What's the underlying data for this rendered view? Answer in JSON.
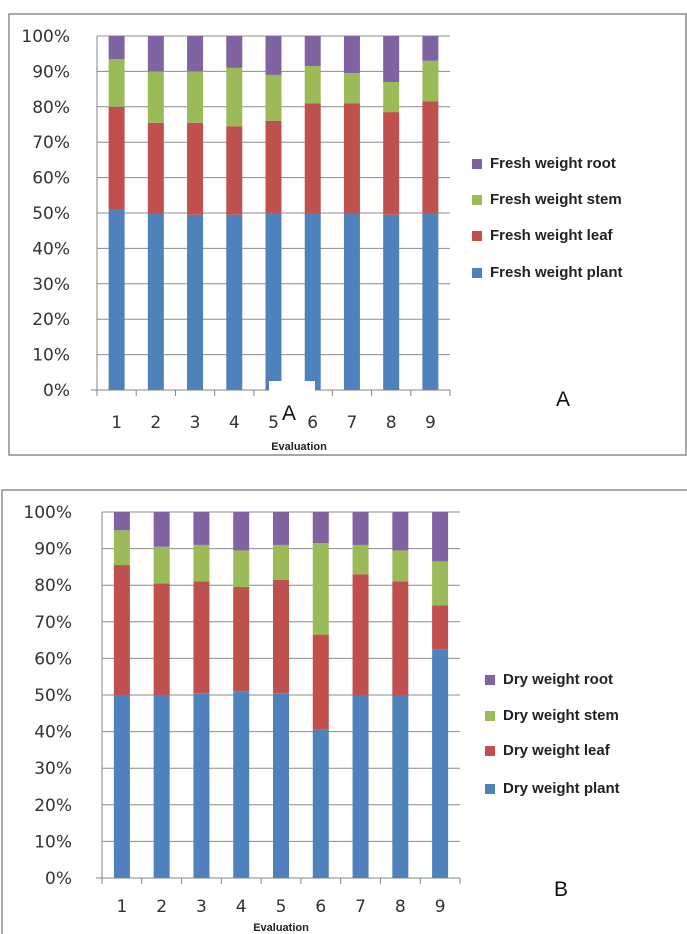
{
  "chart_data": [
    {
      "type": "bar",
      "stacked": true,
      "panel_label": "A",
      "xlabel": "Evaluation",
      "ylim": [
        0,
        100
      ],
      "y_ticks": [
        "0%",
        "10%",
        "20%",
        "30%",
        "40%",
        "50%",
        "60%",
        "70%",
        "80%",
        "90%",
        "100%"
      ],
      "grid": true,
      "legend_position": "right",
      "categories": [
        "1",
        "2",
        "3",
        "4",
        "5",
        "6",
        "7",
        "8",
        "9"
      ],
      "overlay_label": "A",
      "series": [
        {
          "name": "Fresh weight plant",
          "color": "#4f81bd",
          "values": [
            51,
            50,
            49.5,
            49.5,
            50,
            50,
            50,
            49.5,
            50
          ]
        },
        {
          "name": "Fresh weight leaf",
          "color": "#c0504d",
          "values": [
            29,
            25.5,
            26,
            25,
            26,
            31,
            31,
            29,
            31.5
          ]
        },
        {
          "name": "Fresh weight stem",
          "color": "#9bbb59",
          "values": [
            13.5,
            14.5,
            14.5,
            16.5,
            13,
            10.5,
            8.5,
            8.5,
            11.5
          ]
        },
        {
          "name": "Fresh weight root",
          "color": "#8064a2",
          "values": [
            6.5,
            10,
            10,
            9,
            11,
            8.5,
            10.5,
            13,
            7
          ]
        }
      ]
    },
    {
      "type": "bar",
      "stacked": true,
      "panel_label": "B",
      "xlabel": "Evaluation",
      "ylim": [
        0,
        100
      ],
      "y_ticks": [
        "0%",
        "10%",
        "20%",
        "30%",
        "40%",
        "50%",
        "60%",
        "70%",
        "80%",
        "90%",
        "100%"
      ],
      "grid": true,
      "legend_position": "right",
      "categories": [
        "1",
        "2",
        "3",
        "4",
        "5",
        "6",
        "7",
        "8",
        "9"
      ],
      "series": [
        {
          "name": "Dry weight plant",
          "color": "#4f81bd",
          "values": [
            50,
            50,
            50.5,
            51,
            50.5,
            40.5,
            50,
            50,
            62.5
          ]
        },
        {
          "name": "Dry weight leaf",
          "color": "#c0504d",
          "values": [
            35.5,
            30.5,
            30.5,
            28.5,
            31,
            26,
            33,
            31,
            12
          ]
        },
        {
          "name": "Dry weight stem",
          "color": "#9bbb59",
          "values": [
            9.5,
            10,
            10,
            10,
            9.5,
            25,
            8,
            8.5,
            12
          ]
        },
        {
          "name": "Dry weight root",
          "color": "#8064a2",
          "values": [
            5,
            9.5,
            9,
            10.5,
            9,
            8.5,
            9,
            10.5,
            13.5
          ]
        }
      ]
    }
  ]
}
